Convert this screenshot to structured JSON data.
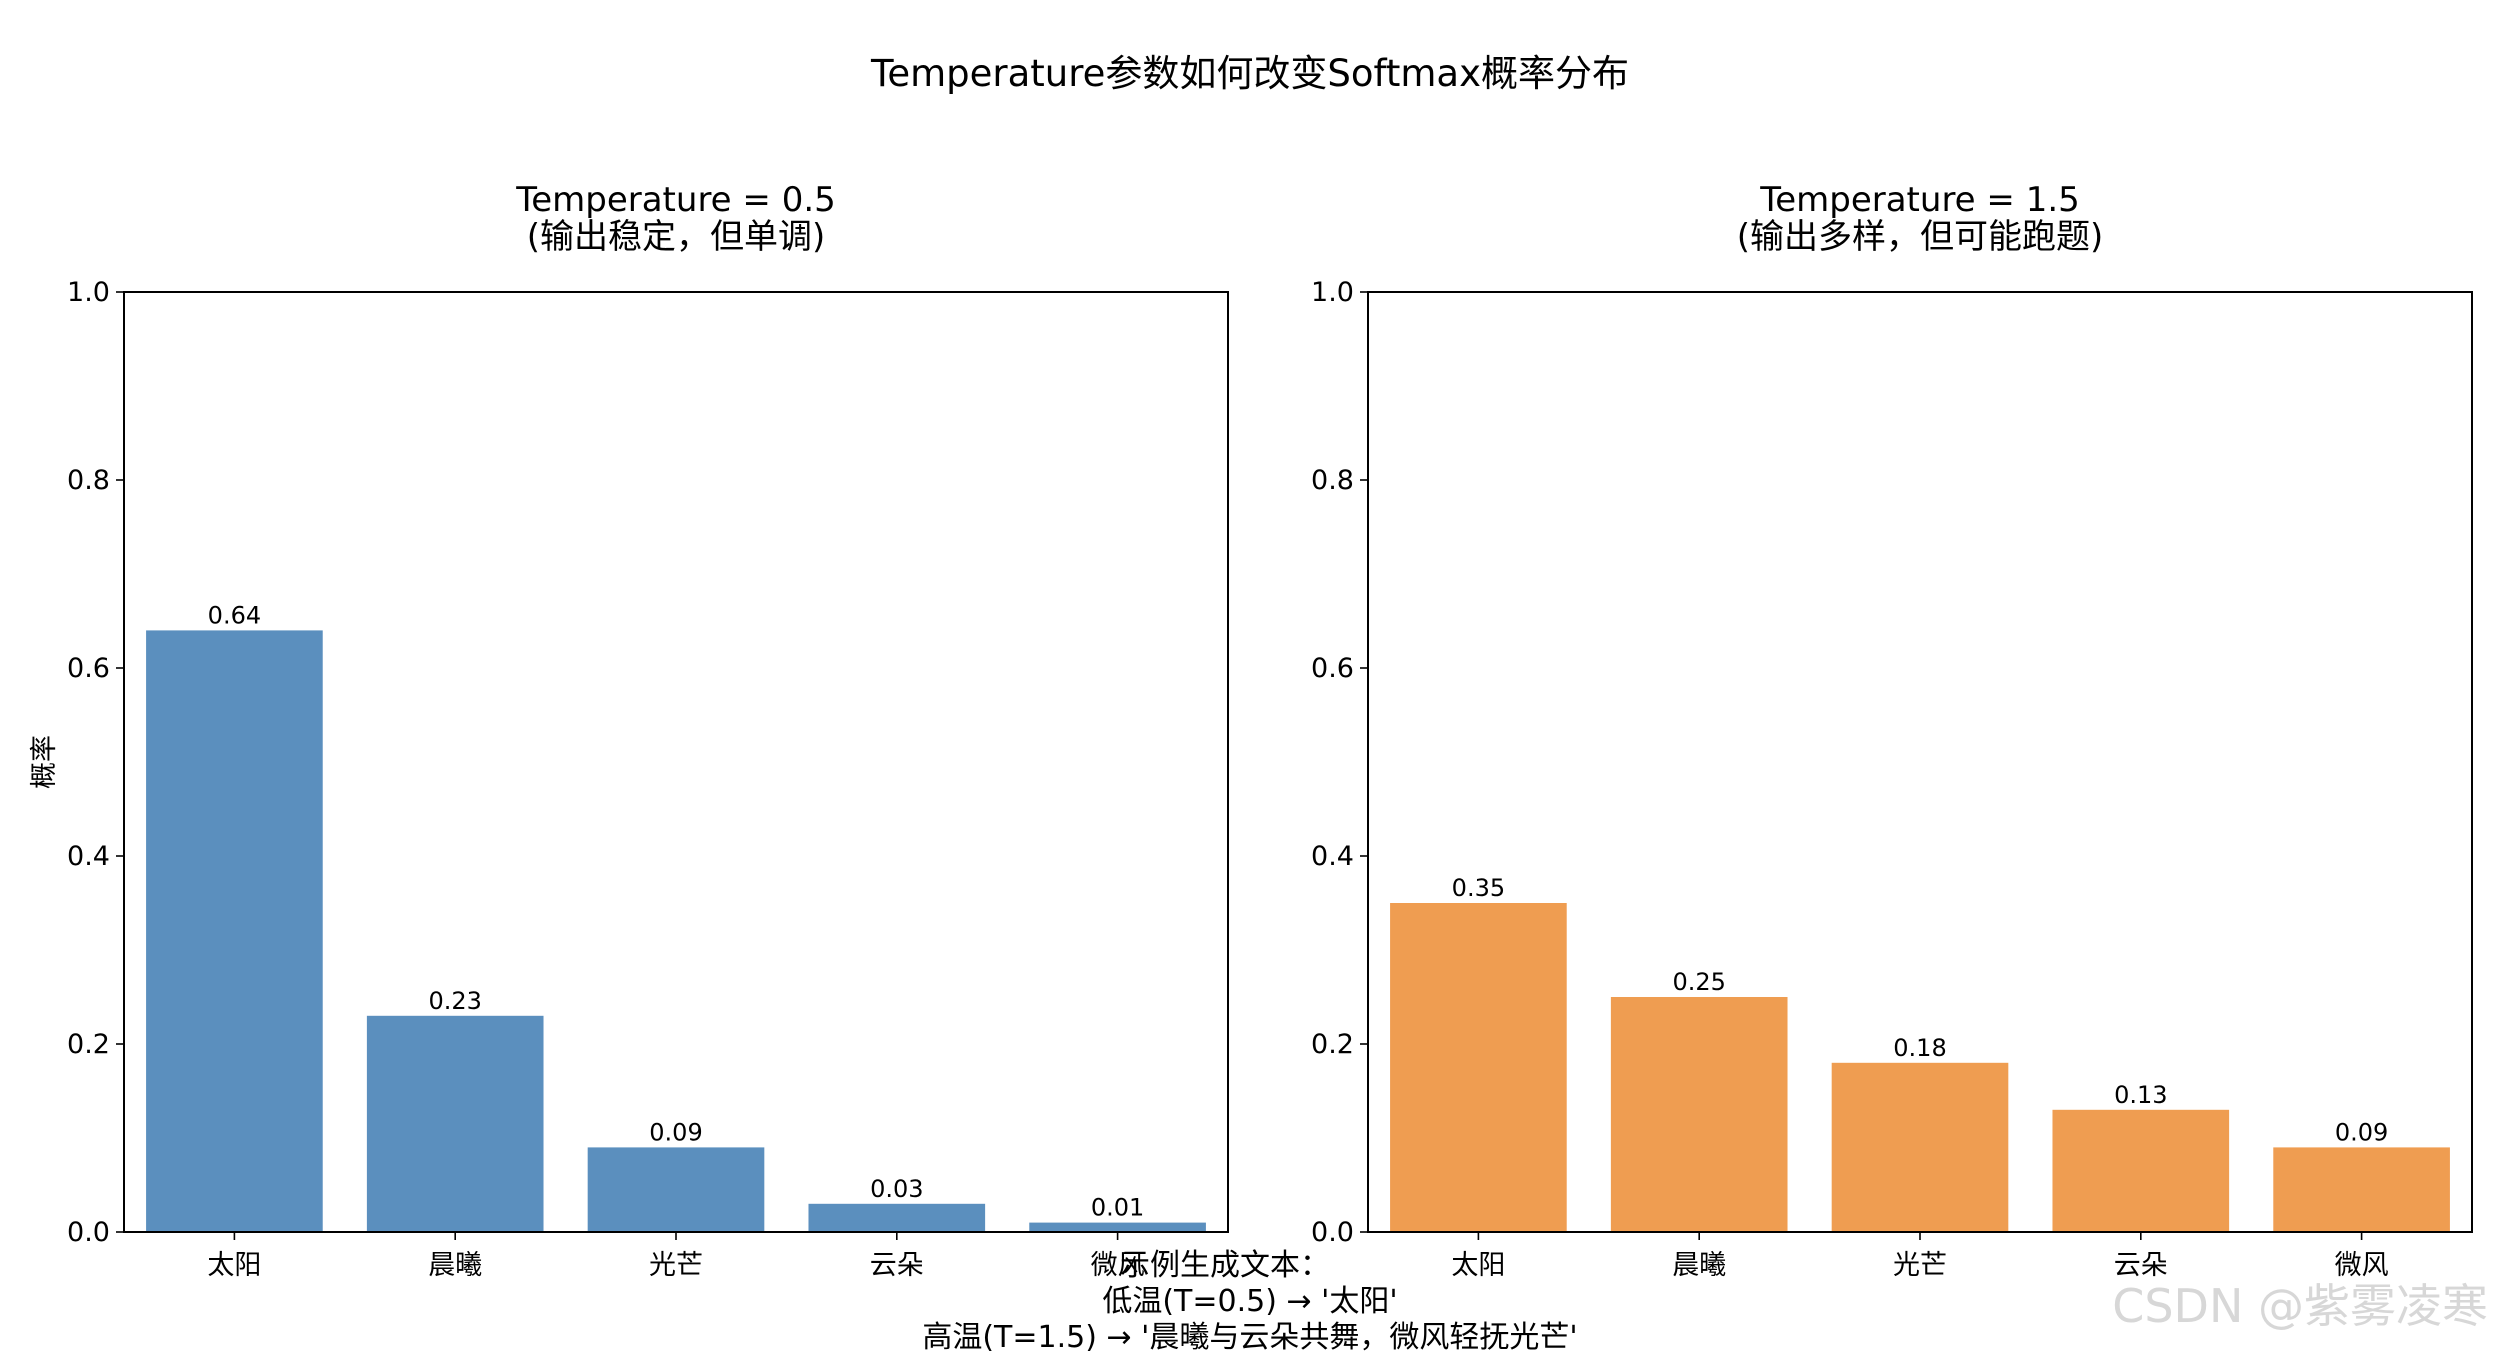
{
  "title": "Temperature参数如何改变Softmax概率分布",
  "chart_data": [
    {
      "type": "bar",
      "title": "Temperature = 0.5",
      "subtitle": "(输出稳定，但单调)",
      "categories": [
        "太阳",
        "晨曦",
        "光芒",
        "云朵",
        "微风"
      ],
      "values": [
        0.64,
        0.23,
        0.09,
        0.03,
        0.01
      ],
      "value_labels": [
        "0.64",
        "0.23",
        "0.09",
        "0.03",
        "0.01"
      ],
      "ylabel": "概率",
      "ylim": [
        0,
        1.0
      ],
      "yticks": [
        "0.0",
        "0.2",
        "0.4",
        "0.6",
        "0.8",
        "1.0"
      ],
      "color": "#5b8fbe"
    },
    {
      "type": "bar",
      "title": "Temperature = 1.5",
      "subtitle": "(输出多样，但可能跑题)",
      "categories": [
        "太阳",
        "晨曦",
        "光芒",
        "云朵",
        "微风"
      ],
      "values": [
        0.35,
        0.25,
        0.18,
        0.13,
        0.09
      ],
      "value_labels": [
        "0.35",
        "0.25",
        "0.18",
        "0.13",
        "0.09"
      ],
      "ylabel": "",
      "ylim": [
        0,
        1.0
      ],
      "yticks": [
        "0.0",
        "0.2",
        "0.4",
        "0.6",
        "0.8",
        "1.0"
      ],
      "color": "#ef9d51"
    }
  ],
  "caption": {
    "line1": "示例生成文本：",
    "line2": "低温(T=0.5) → '太阳'",
    "line3": "高温(T=1.5) → '晨曦与云朵共舞，微风轻抚光芒'"
  },
  "watermark": "CSDN @紫雾凌寒"
}
